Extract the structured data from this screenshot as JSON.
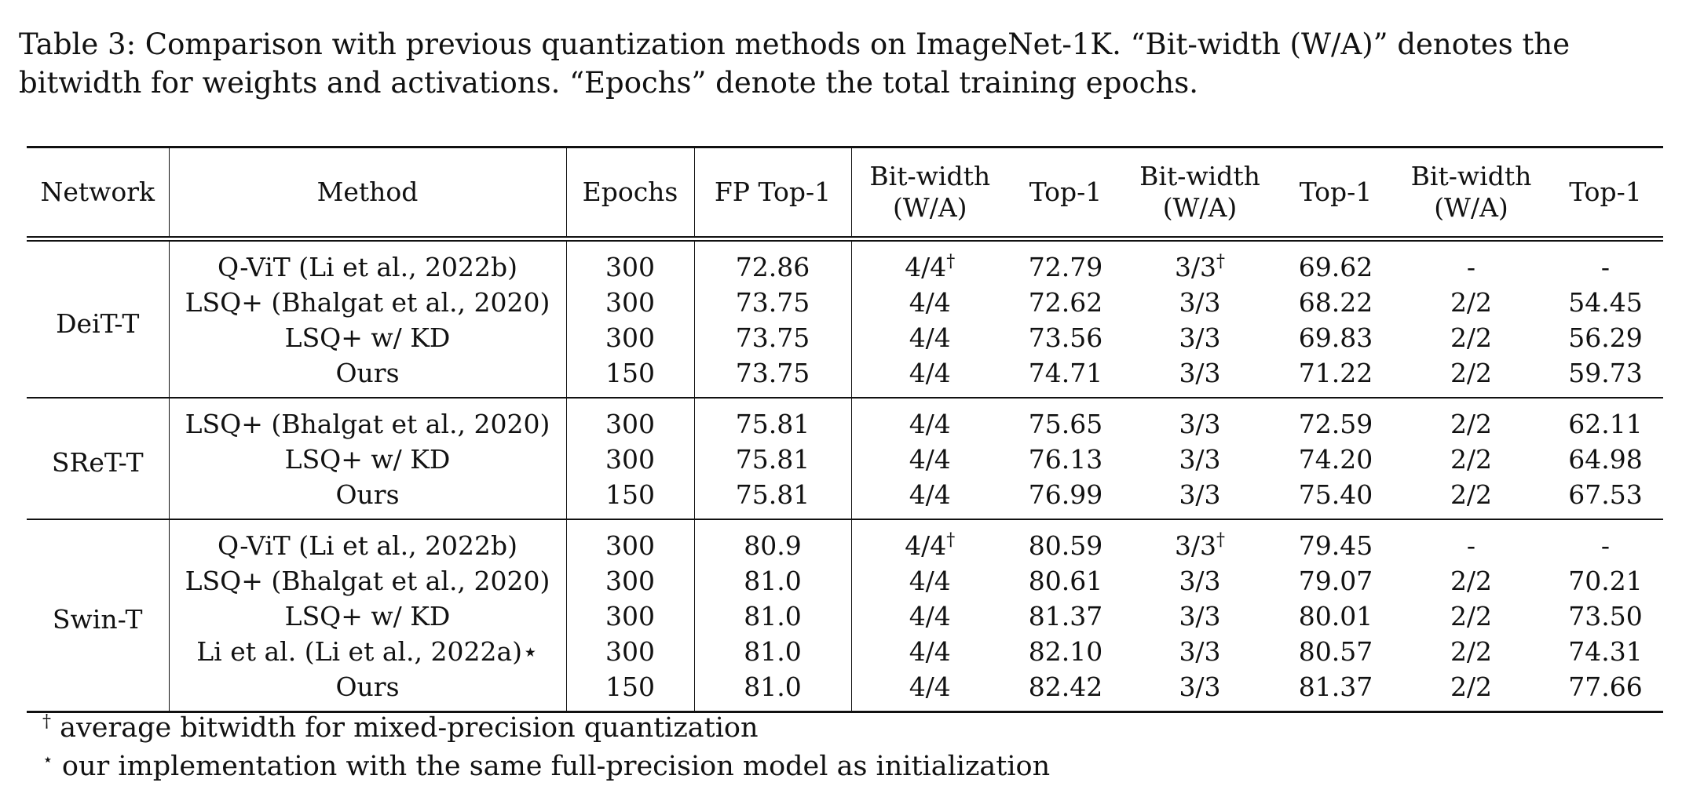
{
  "caption": {
    "line1": "Table 3: Comparison with previous quantization methods on ImageNet-1K. “Bit-width (W/A)” denotes the",
    "line2": "bitwidth for weights and activations. “Epochs” denote the total training epochs."
  },
  "header": {
    "network": "Network",
    "method": "Method",
    "epochs": "Epochs",
    "fp_top1": "FP Top-1",
    "bw1_a": "Bit-width",
    "bw1_b": "(W/A)",
    "top1_1": "Top-1",
    "bw2_a": "Bit-width",
    "bw2_b": "(W/A)",
    "top1_2": "Top-1",
    "bw3_a": "Bit-width",
    "bw3_b": "(W/A)",
    "top1_3": "Top-1"
  },
  "groups": [
    {
      "network": "DeiT-T",
      "rows": [
        {
          "method": "Q-ViT (Li et al., 2022b)",
          "epochs": "300",
          "fp": "72.86",
          "bw1": "4/4",
          "bw1_mark": "†",
          "t1": "72.79",
          "bw2": "3/3",
          "bw2_mark": "†",
          "t2": "69.62",
          "bw3": "-",
          "t3": "-"
        },
        {
          "method": "LSQ+ (Bhalgat et al., 2020)",
          "epochs": "300",
          "fp": "73.75",
          "bw1": "4/4",
          "bw1_mark": "",
          "t1": "72.62",
          "bw2": "3/3",
          "bw2_mark": "",
          "t2": "68.22",
          "bw3": "2/2",
          "t3": "54.45"
        },
        {
          "method": "LSQ+ w/ KD",
          "epochs": "300",
          "fp": "73.75",
          "bw1": "4/4",
          "bw1_mark": "",
          "t1": "73.56",
          "bw2": "3/3",
          "bw2_mark": "",
          "t2": "69.83",
          "bw3": "2/2",
          "t3": "56.29"
        },
        {
          "method": "Ours",
          "epochs": "150",
          "fp": "73.75",
          "bw1": "4/4",
          "bw1_mark": "",
          "t1": "74.71",
          "bw2": "3/3",
          "bw2_mark": "",
          "t2": "71.22",
          "bw3": "2/2",
          "t3": "59.73"
        }
      ]
    },
    {
      "network": "SReT-T",
      "rows": [
        {
          "method": "LSQ+ (Bhalgat et al., 2020)",
          "epochs": "300",
          "fp": "75.81",
          "bw1": "4/4",
          "bw1_mark": "",
          "t1": "75.65",
          "bw2": "3/3",
          "bw2_mark": "",
          "t2": "72.59",
          "bw3": "2/2",
          "t3": "62.11"
        },
        {
          "method": "LSQ+ w/ KD",
          "epochs": "300",
          "fp": "75.81",
          "bw1": "4/4",
          "bw1_mark": "",
          "t1": "76.13",
          "bw2": "3/3",
          "bw2_mark": "",
          "t2": "74.20",
          "bw3": "2/2",
          "t3": "64.98"
        },
        {
          "method": "Ours",
          "epochs": "150",
          "fp": "75.81",
          "bw1": "4/4",
          "bw1_mark": "",
          "t1": "76.99",
          "bw2": "3/3",
          "bw2_mark": "",
          "t2": "75.40",
          "bw3": "2/2",
          "t3": "67.53"
        }
      ]
    },
    {
      "network": "Swin-T",
      "rows": [
        {
          "method": "Q-ViT (Li et al., 2022b)",
          "epochs": "300",
          "fp": "80.9",
          "bw1": "4/4",
          "bw1_mark": "†",
          "t1": "80.59",
          "bw2": "3/3",
          "bw2_mark": "†",
          "t2": "79.45",
          "bw3": "-",
          "t3": "-"
        },
        {
          "method": "LSQ+ (Bhalgat et al., 2020)",
          "epochs": "300",
          "fp": "81.0",
          "bw1": "4/4",
          "bw1_mark": "",
          "t1": "80.61",
          "bw2": "3/3",
          "bw2_mark": "",
          "t2": "79.07",
          "bw3": "2/2",
          "t3": "70.21"
        },
        {
          "method": "LSQ+ w/ KD",
          "epochs": "300",
          "fp": "81.0",
          "bw1": "4/4",
          "bw1_mark": "",
          "t1": "81.37",
          "bw2": "3/3",
          "bw2_mark": "",
          "t2": "80.01",
          "bw3": "2/2",
          "t3": "73.50"
        },
        {
          "method": "Li et al. (Li et al., 2022a)⋆",
          "epochs": "300",
          "fp": "81.0",
          "bw1": "4/4",
          "bw1_mark": "",
          "t1": "82.10",
          "bw2": "3/3",
          "bw2_mark": "",
          "t2": "80.57",
          "bw3": "2/2",
          "t3": "74.31"
        },
        {
          "method": "Ours",
          "epochs": "150",
          "fp": "81.0",
          "bw1": "4/4",
          "bw1_mark": "",
          "t1": "82.42",
          "bw2": "3/3",
          "bw2_mark": "",
          "t2": "81.37",
          "bw3": "2/2",
          "t3": "77.66"
        }
      ]
    }
  ],
  "notes": {
    "dagger_mark": "†",
    "dagger_text": " average bitwidth for mixed-precision quantization",
    "star_mark": "⋆",
    "star_text": " our implementation with the same full-precision model as initialization"
  }
}
